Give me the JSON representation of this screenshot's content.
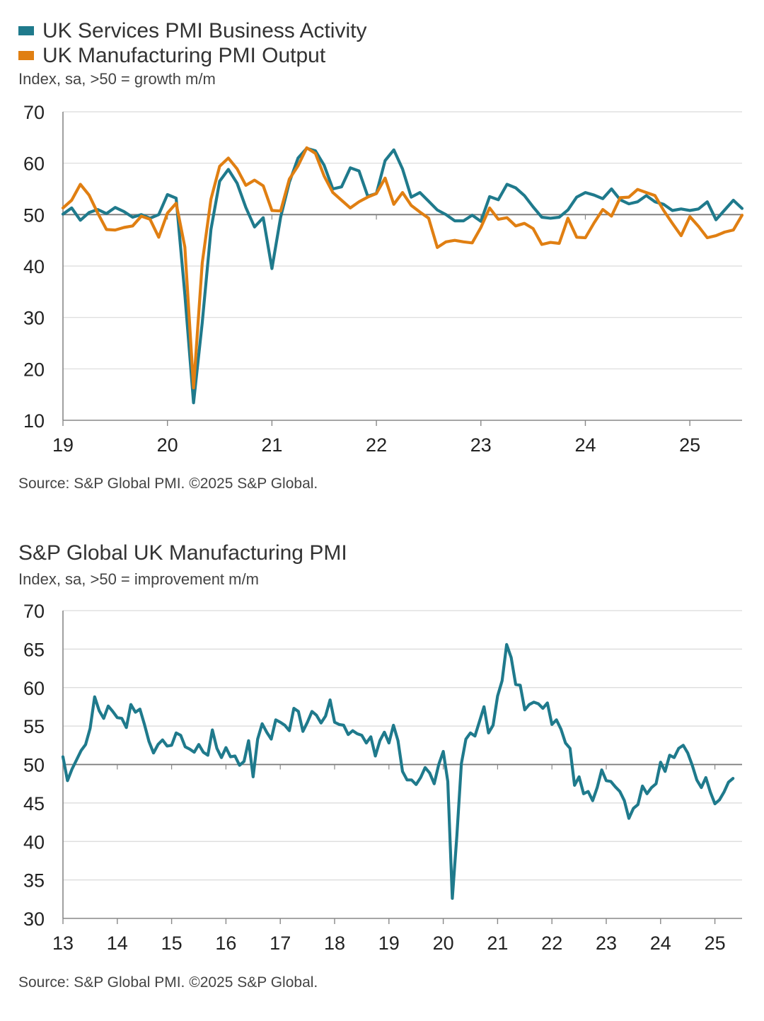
{
  "chart_data": [
    {
      "type": "line",
      "title": "",
      "subtitle": "Index, sa, >50 = growth m/m",
      "source": "Source: S&P Global PMI. ©2025 S&P Global.",
      "ylim": [
        10,
        70
      ],
      "yticks": [
        10,
        20,
        30,
        40,
        50,
        60,
        70
      ],
      "xlim": [
        2019.0,
        2025.5
      ],
      "xticks": [
        {
          "value": 2019,
          "label": "19"
        },
        {
          "value": 2020,
          "label": "20"
        },
        {
          "value": 2021,
          "label": "21"
        },
        {
          "value": 2022,
          "label": "22"
        },
        {
          "value": 2023,
          "label": "23"
        },
        {
          "value": 2024,
          "label": "24"
        },
        {
          "value": 2025,
          "label": "25"
        }
      ],
      "reference_line": 50,
      "legend_position": "top-left",
      "series": [
        {
          "name": "UK Services PMI Business Activity",
          "color": "#1f7a8c",
          "x_start": 2019.0,
          "x_step": 0.0833333,
          "values": [
            50.1,
            51.3,
            48.9,
            50.4,
            51.0,
            50.2,
            51.4,
            50.6,
            49.5,
            50.0,
            49.3,
            50.0,
            53.9,
            53.2,
            34.5,
            13.4,
            29.0,
            47.1,
            56.5,
            58.8,
            56.1,
            51.4,
            47.6,
            49.4,
            39.5,
            49.5,
            56.3,
            61.0,
            62.9,
            62.4,
            59.6,
            55.0,
            55.4,
            59.1,
            58.5,
            53.6,
            54.1,
            60.5,
            62.6,
            58.9,
            53.4,
            54.3,
            52.6,
            50.9,
            50.0,
            48.8,
            48.8,
            49.9,
            48.7,
            53.5,
            52.9,
            55.9,
            55.2,
            53.7,
            51.5,
            49.5,
            49.3,
            49.5,
            50.9,
            53.4,
            54.3,
            53.8,
            53.1,
            55.0,
            52.9,
            52.1,
            52.5,
            53.7,
            52.5,
            52.0,
            50.8,
            51.1,
            50.8,
            51.1,
            52.5,
            49.0,
            50.9,
            52.8,
            51.2
          ]
        },
        {
          "name": "UK Manufacturing PMI Output",
          "color": "#e07f12",
          "x_start": 2019.0,
          "x_step": 0.0833333,
          "values": [
            51.3,
            52.8,
            55.9,
            53.8,
            50.3,
            47.1,
            47.0,
            47.5,
            47.8,
            49.7,
            49.1,
            45.6,
            50.3,
            52.2,
            43.7,
            16.3,
            40.6,
            53.0,
            59.4,
            61.0,
            58.9,
            55.7,
            56.7,
            55.6,
            50.8,
            50.7,
            56.9,
            59.5,
            63.0,
            61.9,
            57.5,
            54.3,
            52.8,
            51.3,
            52.5,
            53.4,
            54.1,
            57.1,
            52.0,
            54.3,
            51.8,
            50.5,
            49.3,
            43.6,
            44.7,
            45.0,
            44.7,
            44.5,
            47.5,
            51.3,
            49.1,
            49.4,
            47.8,
            48.3,
            47.3,
            44.2,
            44.6,
            44.4,
            49.3,
            45.6,
            45.5,
            48.4,
            51.0,
            49.7,
            53.3,
            53.4,
            54.9,
            54.3,
            53.7,
            50.8,
            48.3,
            45.9,
            49.6,
            47.7,
            45.5,
            45.9,
            46.6,
            47.0,
            49.9
          ]
        }
      ]
    },
    {
      "type": "line",
      "title": "S&P Global UK Manufacturing PMI",
      "subtitle": "Index, sa, >50 = improvement m/m",
      "source": "Source: S&P Global PMI. ©2025 S&P Global.",
      "ylim": [
        30,
        70
      ],
      "yticks": [
        30,
        35,
        40,
        45,
        50,
        55,
        60,
        65,
        70
      ],
      "xlim": [
        2013.0,
        2025.5
      ],
      "xticks": [
        {
          "value": 2013,
          "label": "13"
        },
        {
          "value": 2014,
          "label": "14"
        },
        {
          "value": 2015,
          "label": "15"
        },
        {
          "value": 2016,
          "label": "16"
        },
        {
          "value": 2017,
          "label": "17"
        },
        {
          "value": 2018,
          "label": "18"
        },
        {
          "value": 2019,
          "label": "19"
        },
        {
          "value": 2020,
          "label": "20"
        },
        {
          "value": 2021,
          "label": "21"
        },
        {
          "value": 2022,
          "label": "22"
        },
        {
          "value": 2023,
          "label": "23"
        },
        {
          "value": 2024,
          "label": "24"
        },
        {
          "value": 2025,
          "label": "25"
        }
      ],
      "reference_line": 50,
      "series": [
        {
          "color": "#1f7a8c",
          "x_start": 2013.0,
          "x_step": 0.0833333,
          "values": [
            51.0,
            47.9,
            49.4,
            50.6,
            51.8,
            52.6,
            54.7,
            58.8,
            57.0,
            56.0,
            57.6,
            56.9,
            56.1,
            56.0,
            54.8,
            57.8,
            56.8,
            57.2,
            55.2,
            53.0,
            51.5,
            52.6,
            53.2,
            52.4,
            52.5,
            54.1,
            53.8,
            52.3,
            52.0,
            51.6,
            52.6,
            51.6,
            51.2,
            54.5,
            52.1,
            50.9,
            52.2,
            51.0,
            51.1,
            49.9,
            50.4,
            53.1,
            48.4,
            53.3,
            55.3,
            54.2,
            53.3,
            55.8,
            55.5,
            55.1,
            54.4,
            57.3,
            56.9,
            54.3,
            55.5,
            56.9,
            56.4,
            55.4,
            56.3,
            58.4,
            55.5,
            55.2,
            55.1,
            53.9,
            54.4,
            54.0,
            53.8,
            52.8,
            53.6,
            51.1,
            53.1,
            54.2,
            52.8,
            55.1,
            53.1,
            49.1,
            48.0,
            48.0,
            47.4,
            48.3,
            49.6,
            48.9,
            47.5,
            50.0,
            51.7,
            47.8,
            32.6,
            40.7,
            50.1,
            53.3,
            54.1,
            53.7,
            55.6,
            57.5,
            54.1,
            55.1,
            58.9,
            60.9,
            65.6,
            63.9,
            60.4,
            60.3,
            57.1,
            57.8,
            58.1,
            57.9,
            57.3,
            58.0,
            55.2,
            55.8,
            54.6,
            52.8,
            52.1,
            47.3,
            48.4,
            46.2,
            46.5,
            45.3,
            47.0,
            49.3,
            47.9,
            47.8,
            47.1,
            46.5,
            45.3,
            43.0,
            44.3,
            44.8,
            47.2,
            46.2,
            47.0,
            47.5,
            50.3,
            49.1,
            51.2,
            50.9,
            52.1,
            52.5,
            51.5,
            49.9,
            48.0,
            47.0,
            48.3,
            46.4,
            44.9,
            45.4,
            46.4,
            47.7,
            48.2
          ]
        }
      ]
    }
  ]
}
